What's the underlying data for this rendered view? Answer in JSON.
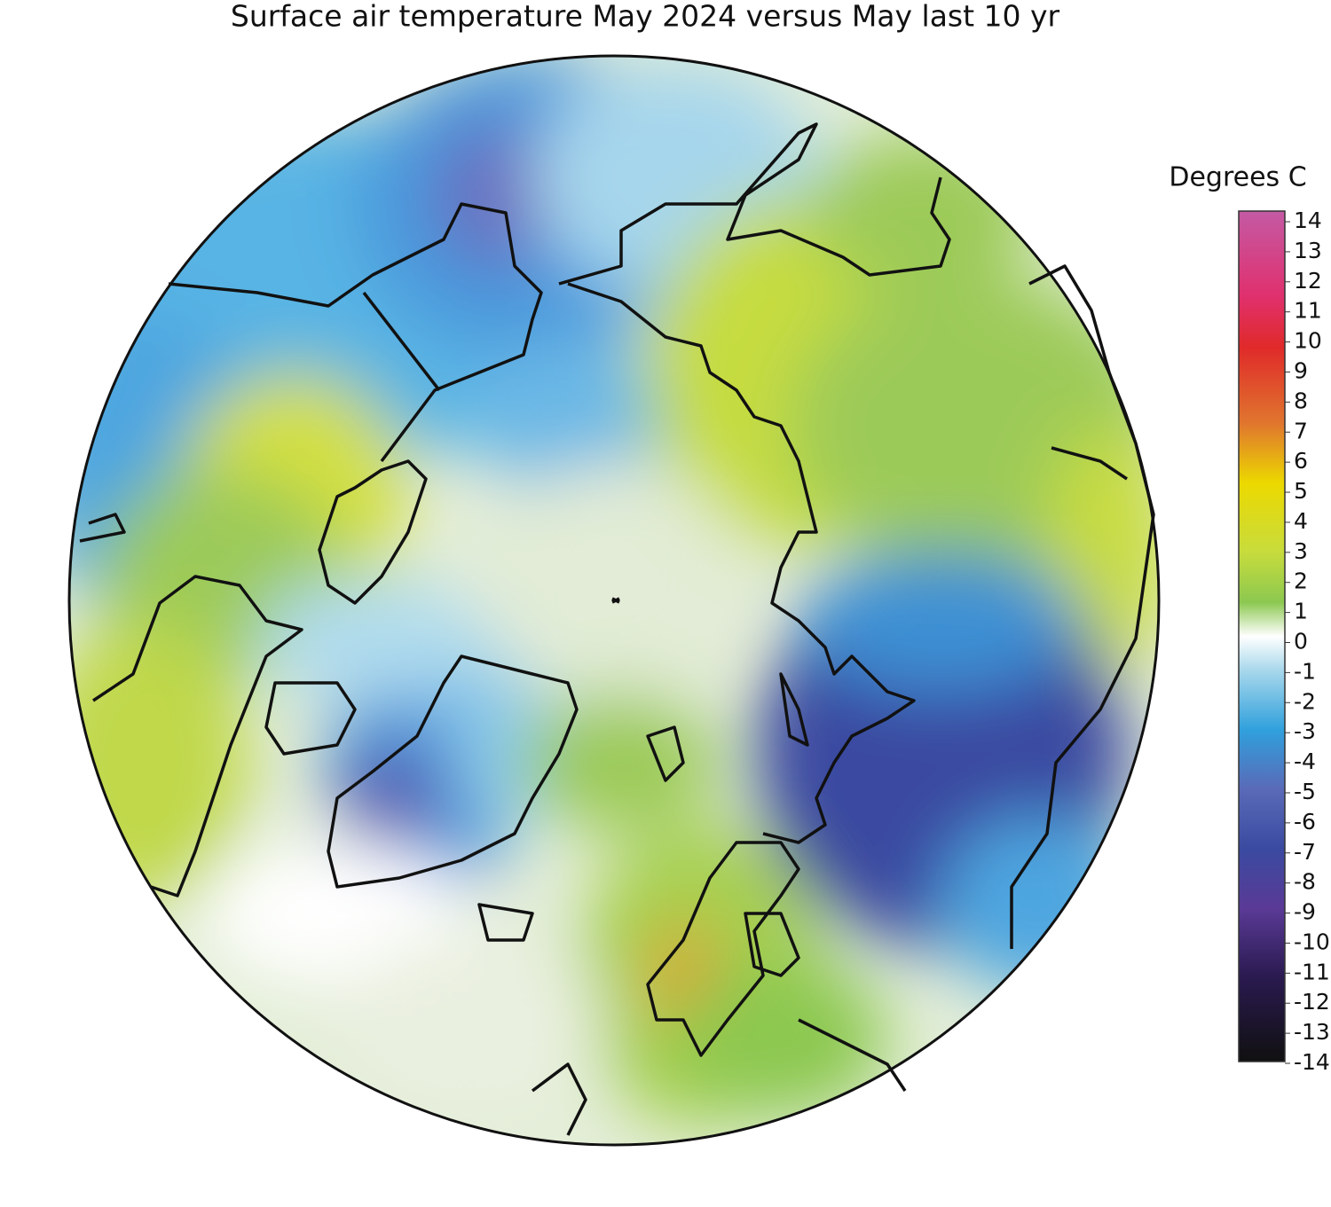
{
  "map": {
    "title": "Surface air temperature May 2024 versus May last 10 yr",
    "legend": {
      "title": "Degrees C",
      "range": [
        -14,
        14
      ],
      "ticks": [
        14,
        13,
        12,
        11,
        10,
        9,
        8,
        7,
        6,
        5,
        4,
        3,
        2,
        1,
        0,
        -1,
        -2,
        -3,
        -4,
        -5,
        -6,
        -7,
        -8,
        -9,
        -10,
        -11,
        -12,
        -13,
        -14
      ]
    }
  }
}
